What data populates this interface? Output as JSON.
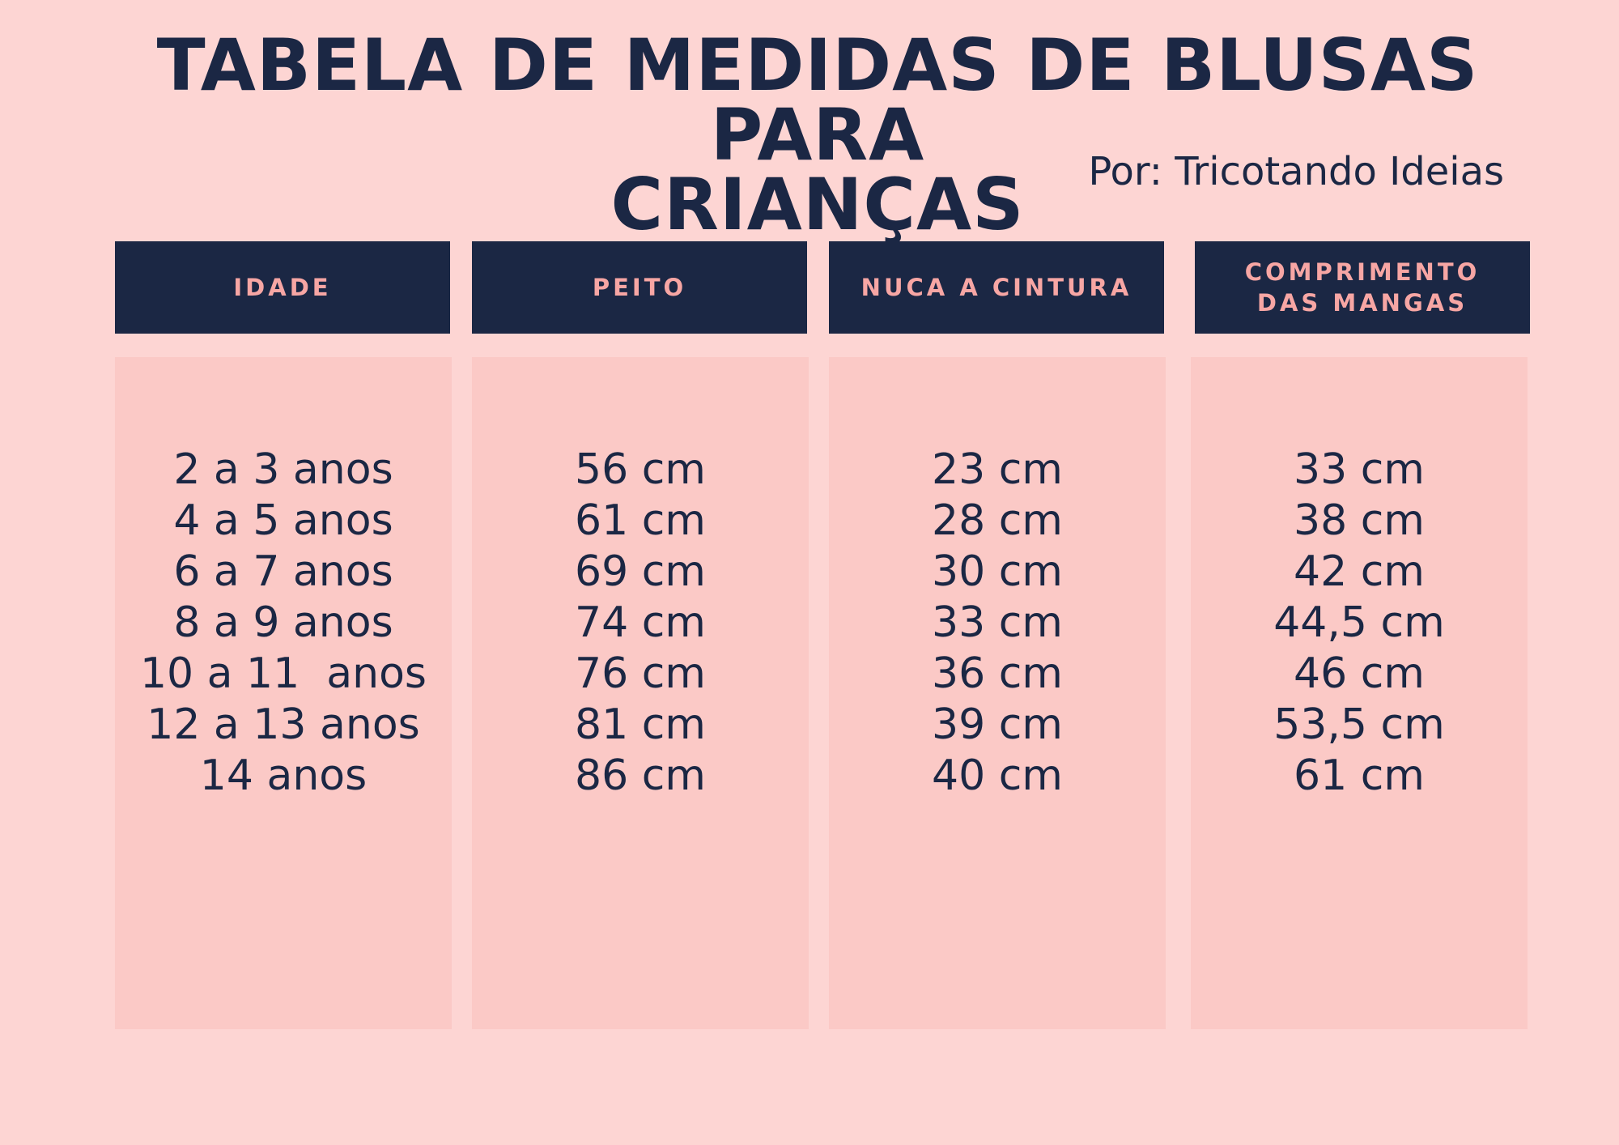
{
  "title_line1": "TABELA DE MEDIDAS DE BLUSAS PARA",
  "title_line2": "CRIANÇAS",
  "byline": "Por: Tricotando Ideias",
  "table": {
    "headers": [
      "IDADE",
      "PEITO",
      "NUCA A CINTURA",
      "COMPRIMENTO\nDAS MANGAS"
    ],
    "columns": [
      [
        "2 a 3 anos",
        "4 a 5 anos",
        "6 a 7 anos",
        "8 a 9 anos",
        "10 a 11  anos",
        "12 a 13 anos",
        "14 anos"
      ],
      [
        "56 cm",
        "61 cm",
        "69 cm",
        "74 cm",
        "76 cm",
        "81 cm",
        "86 cm"
      ],
      [
        "23 cm",
        "28 cm",
        "30 cm",
        "33 cm",
        "36 cm",
        "39 cm",
        "40 cm"
      ],
      [
        "33 cm",
        "38 cm",
        "42 cm",
        "44,5 cm",
        "46 cm",
        "53,5 cm",
        "61 cm"
      ]
    ]
  },
  "colors": {
    "background": "#fdd5d3",
    "column_fill": "#fbc9c6",
    "header_fill": "#1b2744",
    "header_text": "#f7a6a4",
    "text": "#1b2744"
  }
}
